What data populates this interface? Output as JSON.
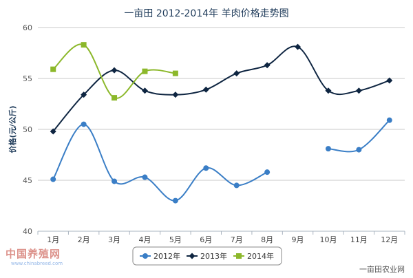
{
  "chart_data": {
    "type": "line",
    "title": "一亩田 2012-2014年 羊肉价格走势图",
    "xlabel": "",
    "ylabel": "价格(元/公斤)",
    "categories": [
      "1月",
      "2月",
      "3月",
      "4月",
      "5月",
      "6月",
      "7月",
      "8月",
      "9月",
      "10月",
      "11月",
      "12月"
    ],
    "ylim": [
      40,
      60
    ],
    "yticks": [
      40,
      45,
      50,
      55,
      60
    ],
    "grid": true,
    "legend": "bottom-center",
    "series": [
      {
        "name": "2012年",
        "color": "#3a7ec6",
        "marker": "circle",
        "values": [
          45.1,
          50.5,
          44.9,
          45.3,
          43.0,
          46.2,
          44.5,
          45.8,
          null,
          48.1,
          48.0,
          50.9
        ]
      },
      {
        "name": "2013年",
        "color": "#0e2541",
        "marker": "diamond",
        "values": [
          49.8,
          53.4,
          55.8,
          53.8,
          53.4,
          53.9,
          55.5,
          56.3,
          58.1,
          53.8,
          53.8,
          54.8
        ]
      },
      {
        "name": "2014年",
        "color": "#8cb82b",
        "marker": "square",
        "values": [
          55.9,
          58.3,
          53.1,
          55.7,
          55.5,
          null,
          null,
          null,
          null,
          null,
          null,
          null
        ]
      }
    ]
  },
  "watermark": {
    "brand": "中国养殖网",
    "url": "www.chinabreed.com"
  },
  "credit": "一亩田农业网"
}
